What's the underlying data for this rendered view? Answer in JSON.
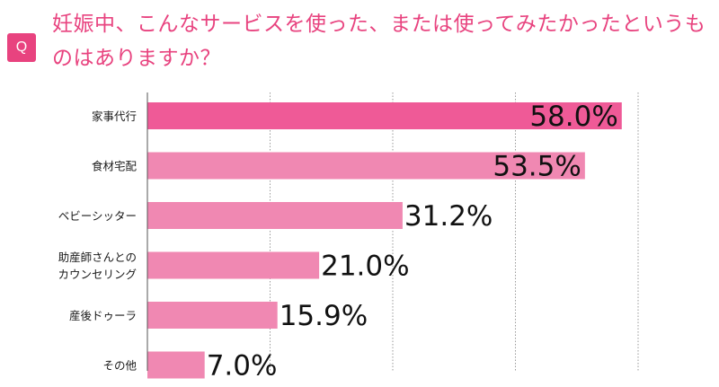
{
  "question": {
    "badge": "Q",
    "text": "妊娠中、こんなサービスを使った、または使ってみたかったというものはありますか？"
  },
  "colors": {
    "accent": "#e8437f",
    "bar_dark": "#ef5a97",
    "bar_light": "#f088b2",
    "grid": "#9a9a9a"
  },
  "chart_data": {
    "type": "bar",
    "orientation": "horizontal",
    "unit": "%",
    "categories": [
      [
        "家事代行"
      ],
      [
        "食材宅配"
      ],
      [
        "ベビーシッター"
      ],
      [
        "助産師さんとの",
        "カウンセリング"
      ],
      [
        "産後ドゥーラ"
      ],
      [
        "その他"
      ]
    ],
    "values": [
      58.0,
      53.5,
      31.2,
      21.0,
      15.9,
      7.0
    ],
    "xlim": [
      0,
      60
    ],
    "grid": true
  }
}
